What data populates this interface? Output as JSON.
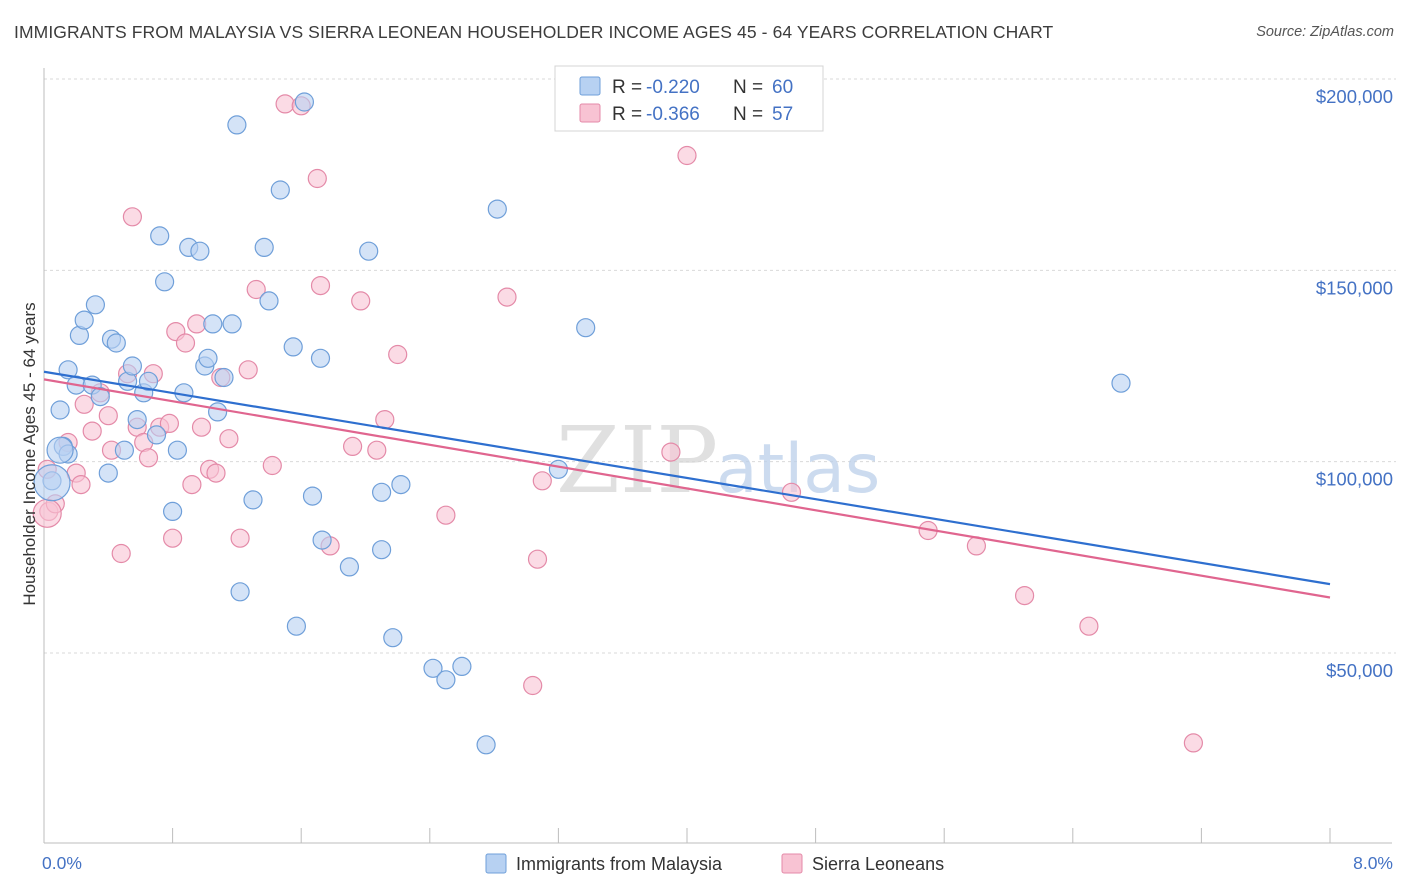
{
  "title": "IMMIGRANTS FROM MALAYSIA VS SIERRA LEONEAN HOUSEHOLDER INCOME AGES 45 - 64 YEARS CORRELATION CHART",
  "source": "Source: ZipAtlas.com",
  "watermark": {
    "part1": "ZIP",
    "part2": "atlas"
  },
  "colors": {
    "malaysia_fill": "#b7d1f2",
    "malaysia_stroke": "#6f9fd9",
    "malaysia_line": "#2e6fcf",
    "sierra_fill": "#f8c3d3",
    "sierra_stroke": "#e48aa8",
    "sierra_line": "#e0658f",
    "grid": "#d9d9d9",
    "axis_text": "#4472c4"
  },
  "legend": {
    "rows": [
      {
        "r_label": "R =",
        "r_value": "-0.220",
        "n_label": "N =",
        "n_value": "60"
      },
      {
        "r_label": "R =",
        "r_value": "-0.366",
        "n_label": "N =",
        "n_value": "57"
      }
    ]
  },
  "bottom_legend": [
    "Immigrants from Malaysia",
    "Sierra Leoneans"
  ],
  "chart_data": {
    "type": "scatter",
    "xlabel": "",
    "ylabel": "Householder Income Ages 45 - 64 years",
    "xlim": [
      0,
      8.0
    ],
    "ylim": [
      10000,
      215000
    ],
    "x_tick_labels": {
      "left": "0.0%",
      "right": "8.0%"
    },
    "y_ticks": [
      {
        "value": 50000,
        "label": "$50,000"
      },
      {
        "value": 100000,
        "label": "$100,000"
      },
      {
        "value": 150000,
        "label": "$150,000"
      },
      {
        "value": 200000,
        "label": "$200,000"
      }
    ],
    "series": [
      {
        "name": "Immigrants from Malaysia",
        "r": -0.22,
        "n": 60,
        "trend": {
          "x": [
            0,
            8.0
          ],
          "y": [
            123500,
            68000
          ]
        },
        "points": [
          [
            0.05,
            95000
          ],
          [
            0.1,
            113500
          ],
          [
            0.12,
            104000
          ],
          [
            0.15,
            102000
          ],
          [
            0.15,
            124000
          ],
          [
            0.2,
            120000
          ],
          [
            0.22,
            133000
          ],
          [
            0.25,
            137000
          ],
          [
            0.3,
            120000
          ],
          [
            0.32,
            141000
          ],
          [
            0.35,
            117000
          ],
          [
            0.4,
            97000
          ],
          [
            0.42,
            132000
          ],
          [
            0.45,
            131000
          ],
          [
            0.5,
            103000
          ],
          [
            0.52,
            121000
          ],
          [
            0.55,
            125000
          ],
          [
            0.58,
            111000
          ],
          [
            0.62,
            118000
          ],
          [
            0.65,
            121000
          ],
          [
            0.7,
            107000
          ],
          [
            0.72,
            159000
          ],
          [
            0.75,
            147000
          ],
          [
            0.8,
            87000
          ],
          [
            0.83,
            103000
          ],
          [
            0.87,
            118000
          ],
          [
            0.9,
            156000
          ],
          [
            0.97,
            155000
          ],
          [
            1.0,
            125000
          ],
          [
            1.02,
            127000
          ],
          [
            1.05,
            136000
          ],
          [
            1.08,
            113000
          ],
          [
            1.12,
            122000
          ],
          [
            1.17,
            136000
          ],
          [
            1.2,
            188000
          ],
          [
            1.22,
            66000
          ],
          [
            1.3,
            90000
          ],
          [
            1.37,
            156000
          ],
          [
            1.4,
            142000
          ],
          [
            1.47,
            171000
          ],
          [
            1.55,
            130000
          ],
          [
            1.57,
            57000
          ],
          [
            1.62,
            194000
          ],
          [
            1.67,
            91000
          ],
          [
            1.72,
            127000
          ],
          [
            1.73,
            79500
          ],
          [
            1.9,
            72500
          ],
          [
            2.02,
            155000
          ],
          [
            2.1,
            77000
          ],
          [
            2.1,
            92000
          ],
          [
            2.17,
            54000
          ],
          [
            2.22,
            94000
          ],
          [
            2.42,
            46000
          ],
          [
            2.5,
            43000
          ],
          [
            2.6,
            46500
          ],
          [
            2.75,
            26000
          ],
          [
            2.82,
            166000
          ],
          [
            3.2,
            98000
          ],
          [
            3.37,
            135000
          ],
          [
            6.7,
            120500
          ]
        ]
      },
      {
        "name": "Sierra Leoneans",
        "r": -0.366,
        "n": 57,
        "trend": {
          "x": [
            0,
            8.0
          ],
          "y": [
            121500,
            64500
          ]
        },
        "points": [
          [
            0.03,
            87000
          ],
          [
            0.07,
            89000
          ],
          [
            0.15,
            105000
          ],
          [
            0.2,
            97000
          ],
          [
            0.23,
            94000
          ],
          [
            0.25,
            115000
          ],
          [
            0.3,
            108000
          ],
          [
            0.35,
            118000
          ],
          [
            0.4,
            112000
          ],
          [
            0.42,
            103000
          ],
          [
            0.48,
            76000
          ],
          [
            0.52,
            123000
          ],
          [
            0.55,
            164000
          ],
          [
            0.58,
            109000
          ],
          [
            0.62,
            105000
          ],
          [
            0.65,
            101000
          ],
          [
            0.68,
            123000
          ],
          [
            0.72,
            109000
          ],
          [
            0.78,
            110000
          ],
          [
            0.8,
            80000
          ],
          [
            0.82,
            134000
          ],
          [
            0.88,
            131000
          ],
          [
            0.92,
            94000
          ],
          [
            0.95,
            136000
          ],
          [
            0.98,
            109000
          ],
          [
            1.03,
            98000
          ],
          [
            1.07,
            97000
          ],
          [
            1.1,
            122000
          ],
          [
            1.15,
            106000
          ],
          [
            1.22,
            80000
          ],
          [
            1.27,
            124000
          ],
          [
            1.32,
            145000
          ],
          [
            1.42,
            99000
          ],
          [
            1.5,
            193500
          ],
          [
            1.6,
            193000
          ],
          [
            1.7,
            174000
          ],
          [
            1.72,
            146000
          ],
          [
            1.78,
            78000
          ],
          [
            1.92,
            104000
          ],
          [
            1.97,
            142000
          ],
          [
            2.07,
            103000
          ],
          [
            2.12,
            111000
          ],
          [
            2.2,
            128000
          ],
          [
            2.5,
            86000
          ],
          [
            2.88,
            143000
          ],
          [
            3.04,
            41500
          ],
          [
            3.07,
            74500
          ],
          [
            3.1,
            95000
          ],
          [
            3.9,
            102500
          ],
          [
            4.0,
            180000
          ],
          [
            4.65,
            92000
          ],
          [
            5.5,
            82000
          ],
          [
            5.8,
            78000
          ],
          [
            6.1,
            65000
          ],
          [
            6.5,
            57000
          ],
          [
            7.15,
            26500
          ],
          [
            0.02,
            98000
          ]
        ]
      }
    ]
  }
}
